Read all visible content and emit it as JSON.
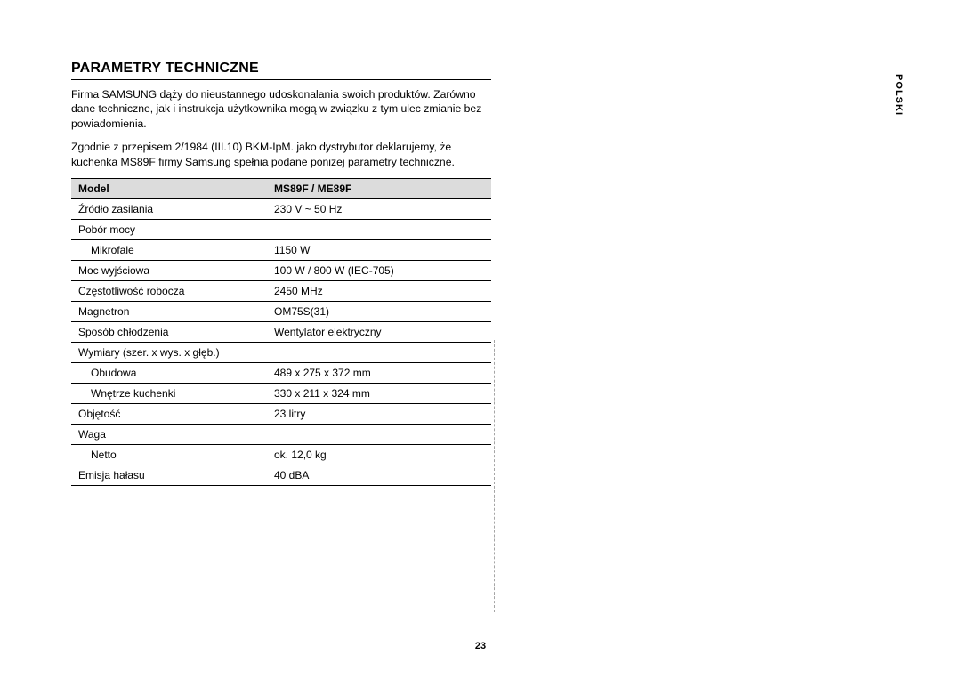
{
  "page": {
    "number": "23",
    "side_label": "POLSKI"
  },
  "heading": "PARAMETRY TECHNICZNE",
  "intro": {
    "p1": "Firma SAMSUNG dąży do nieustannego udoskonalania swoich produktów. Zarówno dane techniczne, jak i instrukcja użytkownika mogą w związku z tym ulec zmianie bez powiadomienia.",
    "p2": "Zgodnie z przepisem 2/1984 (III.10) BKM-IpM. jako dystrybutor deklarujemy, że kuchenka MS89F firmy Samsung spełnia podane poniżej parametry techniczne."
  },
  "table": {
    "header": {
      "col1": "Model",
      "col2": "MS89F / ME89F"
    },
    "rows": [
      {
        "label": "Źródło zasilania",
        "value": "230 V ~ 50 Hz"
      },
      {
        "label": "Pobór mocy",
        "value": "",
        "group": true
      },
      {
        "label": "Mikrofale",
        "value": "1150 W",
        "sub": true
      },
      {
        "label": "Moc wyjściowa",
        "value": "100 W / 800 W (IEC-705)"
      },
      {
        "label": "Częstotliwość robocza",
        "value": "2450 MHz"
      },
      {
        "label": "Magnetron",
        "value": "OM75S(31)"
      },
      {
        "label": "Sposób chłodzenia",
        "value": "Wentylator elektryczny"
      },
      {
        "label": "Wymiary (szer. x wys. x głęb.)",
        "value": "",
        "group": true
      },
      {
        "label": "Obudowa",
        "value": "489 x 275 x 372 mm",
        "sub": true,
        "noborder": true
      },
      {
        "label": "Wnętrze kuchenki",
        "value": "330 x 211 x 324 mm",
        "sub": true
      },
      {
        "label": "Objętość",
        "value": "23 litry"
      },
      {
        "label": "Waga",
        "value": "",
        "group": true
      },
      {
        "label": "Netto",
        "value": "ok. 12,0 kg",
        "sub": true
      },
      {
        "label": "Emisja hałasu",
        "value": "40 dBA"
      }
    ]
  },
  "colors": {
    "header_bg": "#dcdcdc",
    "text": "#000000",
    "border": "#000000",
    "background": "#ffffff"
  },
  "typography": {
    "heading_size_pt": 16,
    "body_size_pt": 12,
    "table_size_pt": 12,
    "side_label_size_pt": 11,
    "page_number_size_pt": 11,
    "font_family": "Arial"
  }
}
